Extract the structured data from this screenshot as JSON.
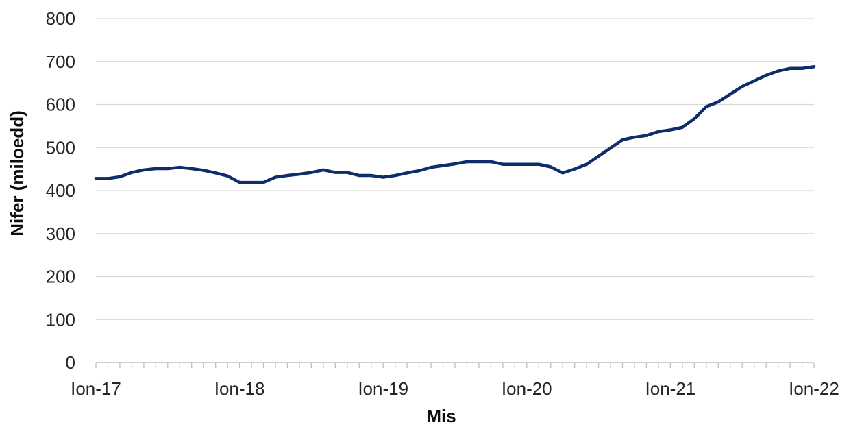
{
  "chart_data": {
    "type": "line",
    "title": "",
    "xlabel": "Mis",
    "ylabel": "Nifer (miloedd)",
    "ylim": [
      0,
      800
    ],
    "yticks": [
      0,
      100,
      200,
      300,
      400,
      500,
      600,
      700,
      800
    ],
    "grid": true,
    "legend": "none",
    "x_tick_labels": [
      "Ion-17",
      "Ion-18",
      "Ion-19",
      "Ion-20",
      "Ion-21",
      "Ion-22"
    ],
    "months_per_label": 12,
    "colors": {
      "series": "#0e2d6b",
      "grid": "#d9d9d9",
      "axis": "#bfbfbf"
    },
    "series": [
      {
        "values": [
          428,
          428,
          432,
          442,
          448,
          451,
          451,
          454,
          451,
          447,
          441,
          434,
          419,
          419,
          419,
          431,
          435,
          438,
          442,
          448,
          442,
          442,
          435,
          435,
          431,
          435,
          441,
          446,
          454,
          458,
          462,
          467,
          467,
          467,
          461,
          461,
          461,
          461,
          455,
          441,
          450,
          461,
          480,
          499,
          518,
          524,
          528,
          537,
          541,
          547,
          567,
          595,
          606,
          624,
          642,
          655,
          668,
          678,
          684,
          684,
          688
        ]
      }
    ]
  }
}
